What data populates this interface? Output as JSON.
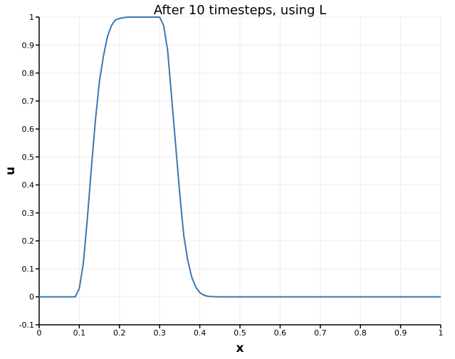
{
  "chart_data": {
    "type": "line",
    "title": "After 10 timesteps, using L",
    "xlabel": "x",
    "ylabel": "u",
    "xlim": [
      0,
      1
    ],
    "ylim": [
      -0.1,
      1
    ],
    "grid": true,
    "x_ticks": [
      0,
      0.1,
      0.2,
      0.3,
      0.4,
      0.5,
      0.6,
      0.7,
      0.8,
      0.9,
      1
    ],
    "x_tick_labels": [
      "0",
      "0.1",
      "0.2",
      "0.3",
      "0.4",
      "0.5",
      "0.6",
      "0.7",
      "0.8",
      "0.9",
      "1"
    ],
    "y_ticks": [
      -0.1,
      0,
      0.1,
      0.2,
      0.3,
      0.4,
      0.5,
      0.6,
      0.7,
      0.8,
      0.9,
      1
    ],
    "y_tick_labels": [
      "-0.1",
      "0",
      "0.1",
      "0.2",
      "0.3",
      "0.4",
      "0.5",
      "0.6",
      "0.7",
      "0.8",
      "0.9",
      "1"
    ],
    "line_color": "#3a78b0",
    "series": [
      {
        "x": [
          0,
          0.09,
          0.1,
          0.11,
          0.12,
          0.13,
          0.14,
          0.15,
          0.16,
          0.17,
          0.18,
          0.19,
          0.2,
          0.21,
          0.22,
          0.23,
          0.24,
          0.25,
          0.26,
          0.27,
          0.28,
          0.29,
          0.3,
          0.31,
          0.32,
          0.33,
          0.34,
          0.35,
          0.36,
          0.37,
          0.38,
          0.39,
          0.4,
          0.41,
          0.42,
          0.43,
          0.44,
          0.45,
          0.5,
          0.6,
          0.7,
          0.8,
          0.9,
          1
        ],
        "values": [
          0,
          0,
          0.03,
          0.12,
          0.28,
          0.46,
          0.63,
          0.77,
          0.86,
          0.93,
          0.97,
          0.99,
          0.995,
          0.998,
          1,
          1,
          1,
          1,
          1,
          1,
          1,
          1,
          1,
          0.97,
          0.88,
          0.71,
          0.54,
          0.37,
          0.22,
          0.13,
          0.07,
          0.035,
          0.015,
          0.006,
          0.002,
          0.0008,
          0.0002,
          0,
          0,
          0,
          0,
          0,
          0,
          0
        ]
      }
    ]
  }
}
